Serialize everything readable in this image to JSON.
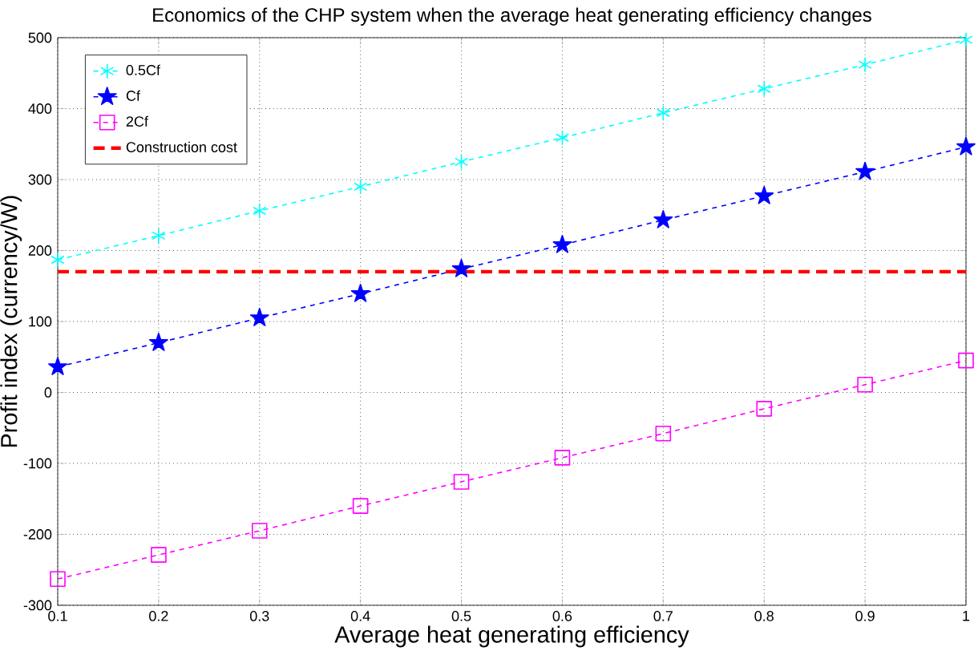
{
  "chart_data": {
    "type": "line",
    "title": "Economics of the CHP system when the average heat generating efficiency changes",
    "xlabel": "Average heat generating efficiency",
    "ylabel": "Profit index (currency/W)",
    "x": [
      0.1,
      0.2,
      0.3,
      0.4,
      0.5,
      0.6,
      0.7,
      0.8,
      0.9,
      1
    ],
    "series": [
      {
        "name": "0.5Cf",
        "color": "#00ffff",
        "marker": "cross",
        "line_style": "dashed",
        "values": [
          187,
          221,
          256,
          290,
          325,
          359,
          394,
          428,
          462,
          497
        ]
      },
      {
        "name": "Cf",
        "color": "#0000ff",
        "marker": "star",
        "line_style": "dashed",
        "values": [
          36,
          70,
          105,
          139,
          174,
          208,
          243,
          277,
          311,
          346
        ]
      },
      {
        "name": "2Cf",
        "color": "#ff00ff",
        "marker": "square",
        "line_style": "dashed",
        "values": [
          -263,
          -229,
          -195,
          -160,
          -126,
          -92,
          -58,
          -23,
          11,
          45
        ]
      }
    ],
    "ref_lines": [
      {
        "axis": "y",
        "value": 170,
        "label": "Construction cost",
        "color": "#ff0000",
        "line_style": "dashed"
      }
    ],
    "xlim": [
      0.1,
      1
    ],
    "ylim": [
      -300,
      500
    ],
    "xticks": [
      0.1,
      0.2,
      0.3,
      0.4,
      0.5,
      0.6,
      0.7,
      0.8,
      0.9,
      1
    ],
    "yticks": [
      -300,
      -200,
      -100,
      0,
      100,
      200,
      300,
      400,
      500
    ],
    "grid": true,
    "legend": "top left"
  }
}
